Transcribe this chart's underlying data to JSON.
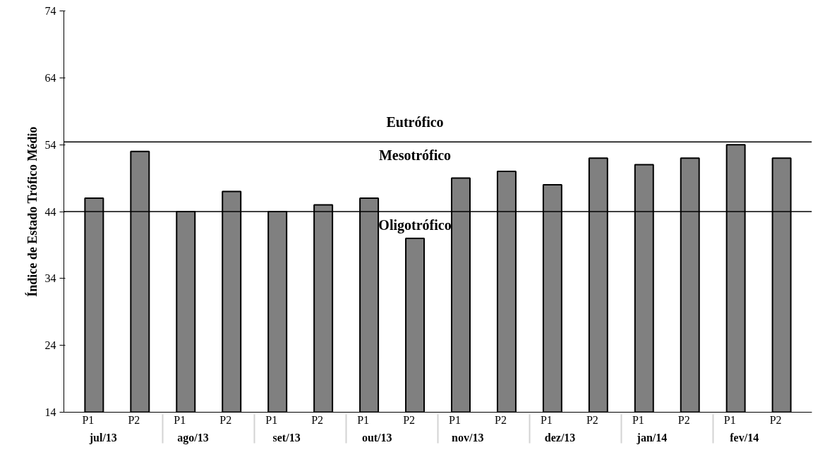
{
  "chart_data": {
    "type": "bar",
    "ylabel": "Índice de Estado Trófico Médio",
    "categories": [
      "jul/13",
      "ago/13",
      "set/13",
      "out/13",
      "nov/13",
      "dez/13",
      "jan/14",
      "fev/14"
    ],
    "series": [
      {
        "name": "P1",
        "color": "#808080",
        "values": [
          46,
          44,
          44,
          46,
          49,
          48,
          51,
          54
        ]
      },
      {
        "name": "P2",
        "color": "#808080",
        "values": [
          53,
          47,
          45,
          40,
          50,
          52,
          52,
          52
        ]
      }
    ],
    "ylim": [
      14,
      74
    ],
    "yticks": [
      14,
      24,
      34,
      44,
      54,
      64,
      74
    ],
    "grid": false,
    "legend": false,
    "ref_lines": [
      {
        "axis": "y",
        "value": 54.4,
        "color": "#000000",
        "line_style": "solid"
      },
      {
        "axis": "y",
        "value": 44,
        "color": "#000000",
        "line_style": "solid"
      }
    ],
    "annotations": [
      "Eutrófico",
      "Mesotrófico",
      "Oligotrófico"
    ]
  }
}
